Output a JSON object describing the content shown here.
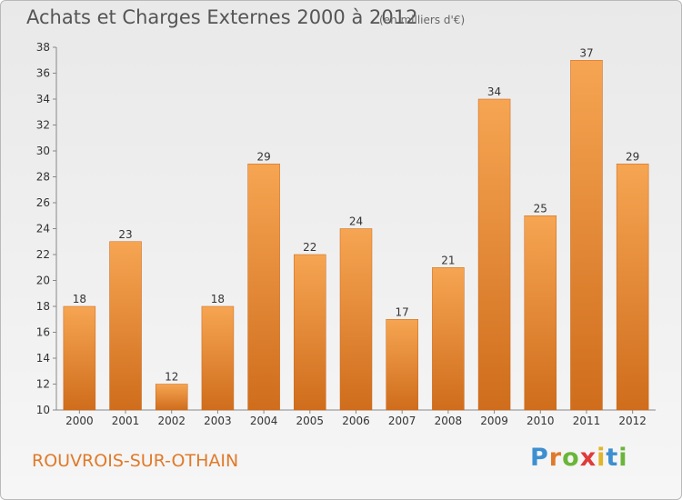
{
  "header": {
    "title": "Achats et Charges Externes 2000 à 2012",
    "subtitle": "(en milliers d'€)"
  },
  "footer": {
    "city": "ROUVROIS-SUR-OTHAIN",
    "logo_letters": [
      "P",
      "r",
      "o",
      "x",
      "i",
      "t",
      "i"
    ],
    "logo_colors": [
      "#3d8fd1",
      "#e07a2a",
      "#6bb53a",
      "#e03a3a",
      "#e0b52a",
      "#3d8fd1",
      "#6bb53a"
    ]
  },
  "chart_data": {
    "type": "bar",
    "categories": [
      "2000",
      "2001",
      "2002",
      "2003",
      "2004",
      "2005",
      "2006",
      "2007",
      "2008",
      "2009",
      "2010",
      "2011",
      "2012"
    ],
    "values": [
      18,
      23,
      12,
      18,
      29,
      22,
      24,
      17,
      21,
      34,
      25,
      37,
      29
    ],
    "title": "Achats et Charges Externes 2000 à 2012",
    "xlabel": "",
    "ylabel": "",
    "ylim": [
      10,
      38
    ],
    "yticks": [
      10,
      12,
      14,
      16,
      18,
      20,
      22,
      24,
      26,
      28,
      30,
      32,
      34,
      36,
      38
    ],
    "grid": false,
    "bar_color": "#f0923a"
  }
}
